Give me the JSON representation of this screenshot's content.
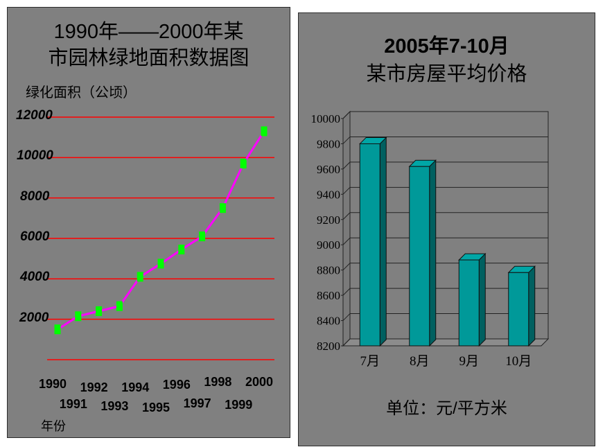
{
  "left_chart": {
    "title_line1": "1990年——2000年某",
    "title_line2": "市园林绿地面积数据图",
    "ylabel": "绿化面积（公顷）",
    "xlabel": "年份"
  },
  "right_chart": {
    "title_line1": "2005年7-10月",
    "title_line2": "某市房屋平均价格",
    "unit_label": "单位：元/平方米"
  },
  "colors": {
    "panel_bg": "#808080",
    "grid_line_red": "#ff0000",
    "line_magenta": "#ff00ff",
    "marker_green": "#00ff00",
    "bar_teal": "#009999",
    "bar_teal_dark": "#006060"
  },
  "chart_data": [
    {
      "type": "line",
      "title": "1990年——2000年某市园林绿地面积数据图",
      "ylabel": "绿化面积（公顷）",
      "xlabel": "年份",
      "x": [
        1990,
        1991,
        1992,
        1993,
        1994,
        1995,
        1996,
        1997,
        1998,
        1999,
        2000
      ],
      "x_tick_labels": [
        "1990",
        "1991",
        "1992",
        "1993",
        "1994",
        "1995",
        "1996",
        "1997",
        "1998",
        "1999",
        "2000"
      ],
      "y_ticks": [
        2000,
        4000,
        6000,
        8000,
        10000,
        12000
      ],
      "ylim": [
        0,
        12000
      ],
      "series": [
        {
          "values": [
            1500,
            2150,
            2400,
            2650,
            4100,
            4750,
            5450,
            6100,
            7500,
            9700,
            11300
          ]
        }
      ],
      "grid": true
    },
    {
      "type": "bar",
      "title": "2005年7-10月某市房屋平均价格",
      "categories": [
        "7月",
        "8月",
        "9月",
        "10月"
      ],
      "values": [
        9800,
        9620,
        8880,
        8780
      ],
      "ylim": [
        8200,
        10000
      ],
      "y_ticks": [
        8200,
        8400,
        8600,
        8800,
        9000,
        9200,
        9400,
        9600,
        9800,
        10000
      ],
      "unit": "单位：元/平方米",
      "grid": true
    }
  ]
}
